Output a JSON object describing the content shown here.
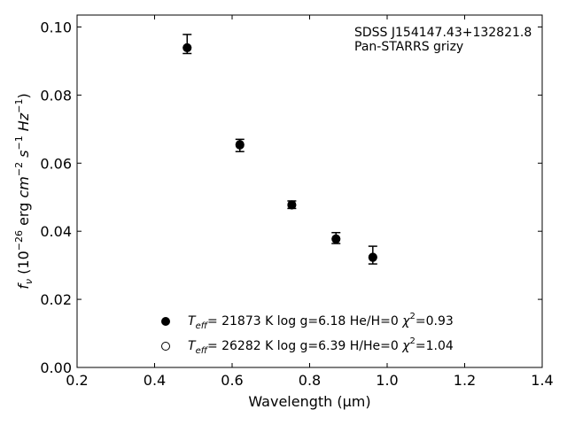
{
  "chart_data": {
    "type": "scatter",
    "xlabel": "Wavelength (μm)",
    "ylabel_parts": {
      "f": "f",
      "nu": "ν",
      "open": " (10",
      "exp1": "−26",
      "erg": " erg ",
      "cm": "cm",
      "exp2": "−2",
      "s": " s",
      "exp3": "−1",
      "hz": " Hz",
      "exp4": "−1",
      "close": ")"
    },
    "xlim": [
      0.2,
      1.4
    ],
    "ylim": [
      0.0,
      0.1035
    ],
    "x_ticks": [
      0.2,
      0.4,
      0.6,
      0.8,
      1.0,
      1.2,
      1.4
    ],
    "x_tick_labels": [
      "0.2",
      "0.4",
      "0.6",
      "0.8",
      "1.0",
      "1.2",
      "1.4"
    ],
    "y_ticks": [
      0.0,
      0.02,
      0.04,
      0.06,
      0.08,
      0.1
    ],
    "y_tick_labels": [
      "0.00",
      "0.02",
      "0.04",
      "0.06",
      "0.08",
      "0.10"
    ],
    "grid": false,
    "annotation": {
      "line1": "SDSS J154147.43+132821.8",
      "line2": "Pan-STARRS grizy"
    },
    "observed": {
      "x": [
        0.484,
        0.62,
        0.754,
        0.868,
        0.963
      ],
      "y": [
        0.095,
        0.0652,
        0.0478,
        0.038,
        0.033
      ],
      "err": [
        0.0028,
        0.0018,
        0.0011,
        0.0016,
        0.0026
      ]
    },
    "series": [
      {
        "name": "Teff= 21873 K  log g=6.18  He/H=0  χ2=0.93",
        "marker": "filled",
        "color": "#000000",
        "x": [
          0.484,
          0.62,
          0.754,
          0.868,
          0.963
        ],
        "y": [
          0.0939,
          0.0655,
          0.0478,
          0.0378,
          0.0324
        ]
      },
      {
        "name": "Teff= 26282 K  log g=6.39  H/He=0  χ2=1.04",
        "marker": "open",
        "color": "#000000",
        "x": [
          0.484,
          0.62,
          0.754,
          0.868,
          0.963
        ],
        "y": [
          0.0939,
          0.0653,
          0.0477,
          0.0377,
          0.0323
        ]
      }
    ],
    "legend": {
      "placement": "lower-center",
      "entries": [
        {
          "T": "T",
          "eff": "eff",
          "rest": "= 21873 K  log g=6.18  He/H=0  ",
          "chi": "χ",
          "sq": "2",
          "chival": "=0.93"
        },
        {
          "T": "T",
          "eff": "eff",
          "rest": "= 26282 K  log g=6.39  H/He=0  ",
          "chi": "χ",
          "sq": "2",
          "chival": "=1.04"
        }
      ]
    }
  }
}
